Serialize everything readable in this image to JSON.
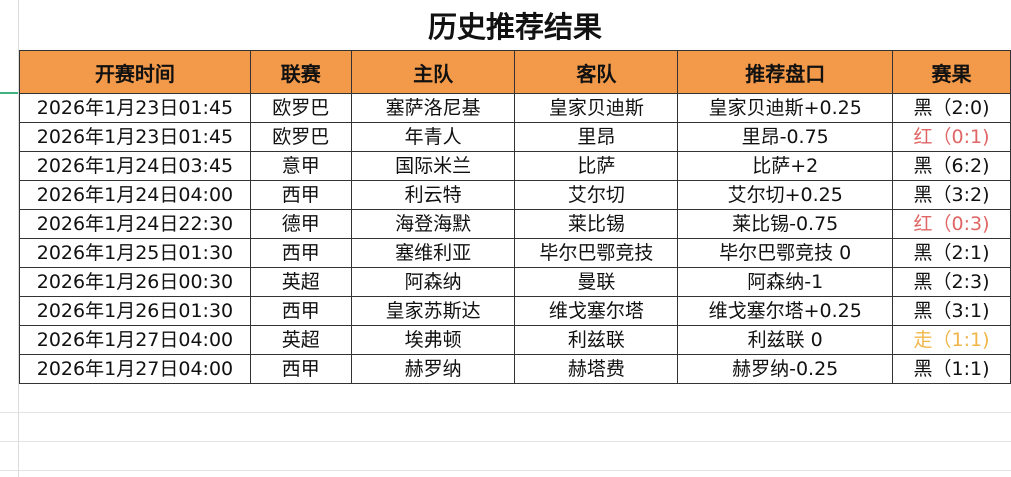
{
  "title": "历史推荐结果",
  "headers": [
    "开赛时间",
    "联赛",
    "主队",
    "客队",
    "推荐盘口",
    "赛果"
  ],
  "colors": {
    "header_bg": "#f39a4a",
    "win": "#111111",
    "loss": "#e06666",
    "push": "#f0b64a"
  },
  "rows": [
    [
      "2026年1月23日01:45",
      "欧罗巴",
      "塞萨洛尼基",
      "皇家贝迪斯",
      "皇家贝迪斯+0.25",
      "黑（2:0)",
      "win"
    ],
    [
      "2026年1月23日01:45",
      "欧罗巴",
      "年青人",
      "里昂",
      "里昂-0.75",
      "红（0:1)",
      "loss"
    ],
    [
      "2026年1月24日03:45",
      "意甲",
      "国际米兰",
      "比萨",
      "比萨+2",
      "黑（6:2)",
      "win"
    ],
    [
      "2026年1月24日04:00",
      "西甲",
      "利云特",
      "艾尔切",
      "艾尔切+0.25",
      "黑（3:2)",
      "win"
    ],
    [
      "2026年1月24日22:30",
      "德甲",
      "海登海默",
      "莱比锡",
      "莱比锡-0.75",
      "红（0:3)",
      "loss"
    ],
    [
      "2026年1月25日01:30",
      "西甲",
      "塞维利亚",
      "毕尔巴鄂竞技",
      "毕尔巴鄂竞技 0",
      "黑（2:1)",
      "win"
    ],
    [
      "2026年1月26日00:30",
      "英超",
      "阿森纳",
      "曼联",
      "阿森纳-1",
      "黑（2:3)",
      "win"
    ],
    [
      "2026年1月26日01:30",
      "西甲",
      "皇家苏斯达",
      "维戈塞尔塔",
      "维戈塞尔塔+0.25",
      "黑（3:1)",
      "win"
    ],
    [
      "2026年1月27日04:00",
      "英超",
      "埃弗顿",
      "利兹联",
      "利兹联 0",
      "走（1:1)",
      "push"
    ],
    [
      "2026年1月27日04:00",
      "西甲",
      "赫罗纳",
      "赫塔费",
      "赫罗纳-0.25",
      "黑（1:1)",
      "win"
    ]
  ]
}
